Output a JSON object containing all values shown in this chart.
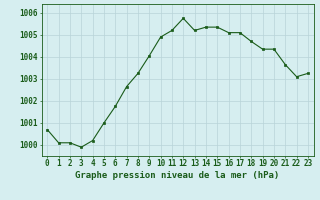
{
  "x": [
    0,
    1,
    2,
    3,
    4,
    5,
    6,
    7,
    8,
    9,
    10,
    11,
    12,
    13,
    14,
    15,
    16,
    17,
    18,
    19,
    20,
    21,
    22,
    23
  ],
  "y": [
    1000.7,
    1000.1,
    1000.1,
    999.9,
    1000.2,
    1001.0,
    1001.75,
    1002.65,
    1003.25,
    1004.05,
    1004.9,
    1005.2,
    1005.75,
    1005.2,
    1005.35,
    1005.35,
    1005.1,
    1005.1,
    1004.7,
    1004.35,
    1004.35,
    1003.65,
    1003.1,
    1003.25
  ],
  "line_color": "#1a5c1a",
  "marker": "s",
  "marker_size": 2,
  "bg_color": "#d6eef0",
  "grid_color": "#b8d4d8",
  "ylabel_values": [
    1000,
    1001,
    1002,
    1003,
    1004,
    1005,
    1006
  ],
  "xlabel_label": "Graphe pression niveau de la mer (hPa)",
  "xlabel_color": "#1a5c1a",
  "ylim": [
    999.5,
    1006.4
  ],
  "xlim": [
    -0.5,
    23.5
  ],
  "font_size_label": 6.5,
  "font_size_tick": 5.5
}
